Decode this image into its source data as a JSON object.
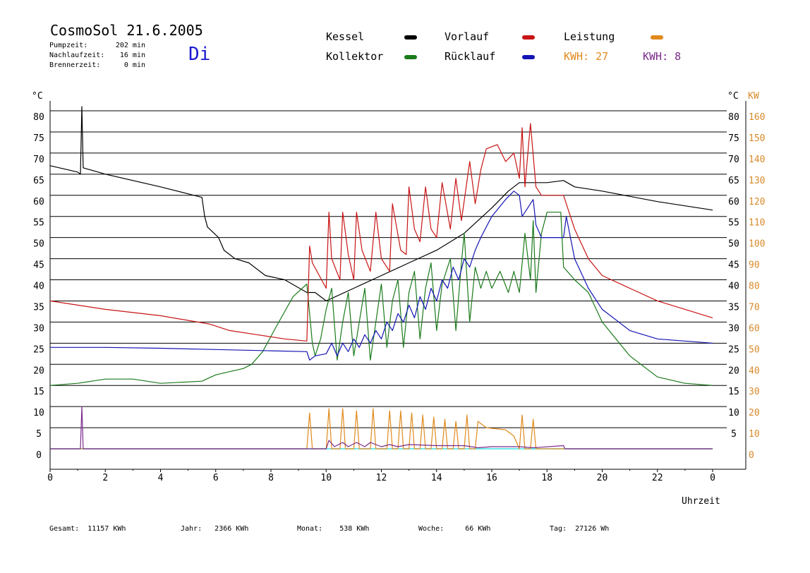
{
  "header": {
    "title": "CosmoSol 21.6.2005",
    "day": "Di",
    "pump_label": "Pumpzeit:",
    "pump_value": "202 min",
    "nachlauf_label": "Nachlaufzeit:",
    "nachlauf_value": "16 min",
    "brenner_label": "Brennerzeit:",
    "brenner_value": "0 min"
  },
  "legend": {
    "kessel": "Kessel",
    "kollektor": "Kollektor",
    "vorlauf": "Vorlauf",
    "ruecklauf": "Rücklauf",
    "leistung": "Leistung",
    "kwh1": "KWH: 27",
    "kwh2": "KWH: 8"
  },
  "colors": {
    "kessel": "#000000",
    "kollektor": "#1a7a1a",
    "vorlauf": "#c81414",
    "ruecklauf": "#1414b4",
    "leistung": "#e08a1e",
    "kwh2": "#7a2a8a",
    "zero_line": "#3ee0e0",
    "right_axis": "#d98a2a",
    "day": "#1a1ad0"
  },
  "footer": {
    "gesamt_label": "Gesamt:",
    "gesamt_value": "11157 KWh",
    "jahr_label": "Jahr:",
    "jahr_value": "2366 KWh",
    "monat_label": "Monat:",
    "monat_value": "538 KWh",
    "woche_label": "Woche:",
    "woche_value": "66 KWh",
    "tag_label": "Tag:",
    "tag_value": "27126 Wh"
  },
  "chart_data": {
    "type": "line",
    "xlabel": "Uhrzeit",
    "ylabel": "°C",
    "y2label": "KW",
    "xlim": [
      0,
      24
    ],
    "ylim": [
      0,
      80
    ],
    "y2lim": [
      0,
      160
    ],
    "x_ticks": [
      "0",
      "2",
      "4",
      "6",
      "8",
      "10",
      "12",
      "14",
      "16",
      "18",
      "20",
      "22",
      "0"
    ],
    "y_ticks": [
      0,
      5,
      10,
      15,
      20,
      25,
      30,
      35,
      40,
      45,
      50,
      55,
      60,
      65,
      70,
      75,
      80
    ],
    "y2_ticks_left": [
      "0",
      "10",
      "20",
      "30",
      "40",
      "50",
      "60",
      "70",
      "80",
      "90",
      "100",
      "110",
      "120",
      "130",
      "140",
      "150",
      "160"
    ],
    "y2_ticks_right_inner": [
      "",
      "5",
      "10",
      "15",
      "20",
      "25",
      "30",
      "35",
      "40",
      "45",
      "50",
      "55",
      "60",
      "65",
      "70",
      "75",
      "80"
    ],
    "grid": "horizontal",
    "series": [
      {
        "name": "Kessel",
        "color": "#000000",
        "points": [
          [
            0,
            67
          ],
          [
            1,
            65.5
          ],
          [
            1.1,
            65
          ],
          [
            1.15,
            81
          ],
          [
            1.2,
            66.5
          ],
          [
            2,
            65
          ],
          [
            4,
            62
          ],
          [
            5.5,
            59.5
          ],
          [
            5.6,
            55
          ],
          [
            5.7,
            52.5
          ],
          [
            6.1,
            50
          ],
          [
            6.3,
            47
          ],
          [
            6.7,
            45
          ],
          [
            7.2,
            44
          ],
          [
            7.8,
            41
          ],
          [
            8.5,
            40
          ],
          [
            9.3,
            37
          ],
          [
            9.6,
            37
          ],
          [
            10,
            35
          ],
          [
            11,
            38
          ],
          [
            12,
            41
          ],
          [
            13,
            44
          ],
          [
            14,
            47
          ],
          [
            15,
            51
          ],
          [
            16,
            57
          ],
          [
            16.6,
            61
          ],
          [
            17,
            63
          ],
          [
            18,
            63
          ],
          [
            18.6,
            63.5
          ],
          [
            19,
            62
          ],
          [
            20,
            61
          ],
          [
            22,
            58.5
          ],
          [
            24,
            56.5
          ]
        ]
      },
      {
        "name": "Kollektor",
        "color": "#1a7a1a",
        "points": [
          [
            0,
            15
          ],
          [
            1,
            15.5
          ],
          [
            1.5,
            16
          ],
          [
            2,
            16.5
          ],
          [
            3,
            16.5
          ],
          [
            4,
            15.5
          ],
          [
            5.5,
            16
          ],
          [
            6,
            17.5
          ],
          [
            7,
            19
          ],
          [
            7.3,
            20
          ],
          [
            7.7,
            23
          ],
          [
            8.2,
            29
          ],
          [
            8.8,
            36
          ],
          [
            9.3,
            39
          ],
          [
            9.5,
            25
          ],
          [
            9.6,
            22
          ],
          [
            9.8,
            26
          ],
          [
            10,
            33
          ],
          [
            10.2,
            38
          ],
          [
            10.4,
            21
          ],
          [
            10.6,
            30
          ],
          [
            10.8,
            37
          ],
          [
            11,
            22
          ],
          [
            11.2,
            30
          ],
          [
            11.4,
            38
          ],
          [
            11.6,
            21
          ],
          [
            11.8,
            30
          ],
          [
            12,
            39
          ],
          [
            12.2,
            24
          ],
          [
            12.4,
            35
          ],
          [
            12.6,
            40
          ],
          [
            12.8,
            24
          ],
          [
            13,
            37
          ],
          [
            13.2,
            42
          ],
          [
            13.4,
            26
          ],
          [
            13.6,
            38
          ],
          [
            13.8,
            44
          ],
          [
            14,
            28
          ],
          [
            14.2,
            39
          ],
          [
            14.5,
            45
          ],
          [
            14.7,
            28
          ],
          [
            14.9,
            44
          ],
          [
            15,
            51
          ],
          [
            15.2,
            30
          ],
          [
            15.4,
            43
          ],
          [
            15.6,
            38
          ],
          [
            15.8,
            42
          ],
          [
            16,
            38
          ],
          [
            16.3,
            42
          ],
          [
            16.6,
            37
          ],
          [
            16.8,
            42
          ],
          [
            17,
            37
          ],
          [
            17.2,
            51
          ],
          [
            17.4,
            40
          ],
          [
            17.5,
            54
          ],
          [
            17.6,
            37
          ],
          [
            17.8,
            51
          ],
          [
            18,
            56
          ],
          [
            18.5,
            56
          ],
          [
            18.6,
            43
          ],
          [
            19,
            40
          ],
          [
            19.5,
            37
          ],
          [
            20,
            30
          ],
          [
            21,
            22
          ],
          [
            22,
            17
          ],
          [
            23,
            15.5
          ],
          [
            24,
            15
          ]
        ]
      },
      {
        "name": "Vorlauf",
        "color": "#c81414",
        "points": [
          [
            0,
            35
          ],
          [
            2,
            33
          ],
          [
            4,
            31.5
          ],
          [
            5.8,
            29.5
          ],
          [
            6.5,
            28
          ],
          [
            7.5,
            27
          ],
          [
            8.5,
            26
          ],
          [
            9.3,
            25.5
          ],
          [
            9.4,
            48
          ],
          [
            9.5,
            44
          ],
          [
            10,
            38
          ],
          [
            10.1,
            56
          ],
          [
            10.2,
            45
          ],
          [
            10.5,
            40
          ],
          [
            10.6,
            56
          ],
          [
            10.8,
            46
          ],
          [
            11,
            40
          ],
          [
            11.1,
            56
          ],
          [
            11.3,
            47
          ],
          [
            11.6,
            42
          ],
          [
            11.8,
            56
          ],
          [
            12,
            45
          ],
          [
            12.3,
            42
          ],
          [
            12.4,
            58
          ],
          [
            12.7,
            47
          ],
          [
            12.9,
            46
          ],
          [
            13,
            62
          ],
          [
            13.2,
            52
          ],
          [
            13.4,
            49
          ],
          [
            13.6,
            62
          ],
          [
            13.8,
            52
          ],
          [
            14,
            50
          ],
          [
            14.2,
            63
          ],
          [
            14.5,
            52
          ],
          [
            14.7,
            64
          ],
          [
            14.9,
            54
          ],
          [
            15.2,
            68
          ],
          [
            15.4,
            58
          ],
          [
            15.6,
            66
          ],
          [
            15.8,
            71
          ],
          [
            16.2,
            72
          ],
          [
            16.5,
            68
          ],
          [
            16.8,
            70
          ],
          [
            17,
            64
          ],
          [
            17.1,
            76
          ],
          [
            17.2,
            62
          ],
          [
            17.4,
            77
          ],
          [
            17.6,
            62
          ],
          [
            17.8,
            60
          ],
          [
            18.6,
            60
          ],
          [
            18.8,
            56
          ],
          [
            19,
            52
          ],
          [
            19.5,
            45
          ],
          [
            20,
            41
          ],
          [
            21,
            38
          ],
          [
            22,
            35
          ],
          [
            24,
            31
          ]
        ]
      },
      {
        "name": "Rücklauf",
        "color": "#1414b4",
        "points": [
          [
            0,
            24
          ],
          [
            2,
            24
          ],
          [
            4,
            23.8
          ],
          [
            6,
            23.5
          ],
          [
            8,
            23.2
          ],
          [
            9.3,
            23
          ],
          [
            9.4,
            21
          ],
          [
            9.6,
            22
          ],
          [
            10,
            22.5
          ],
          [
            10.2,
            25
          ],
          [
            10.4,
            22
          ],
          [
            10.6,
            25
          ],
          [
            10.8,
            23
          ],
          [
            11,
            26
          ],
          [
            11.2,
            24
          ],
          [
            11.4,
            27
          ],
          [
            11.6,
            25
          ],
          [
            11.8,
            28
          ],
          [
            12,
            26
          ],
          [
            12.2,
            30
          ],
          [
            12.4,
            28
          ],
          [
            12.6,
            32
          ],
          [
            12.8,
            30
          ],
          [
            13,
            34
          ],
          [
            13.2,
            31
          ],
          [
            13.4,
            36
          ],
          [
            13.6,
            33
          ],
          [
            13.8,
            38
          ],
          [
            14,
            35
          ],
          [
            14.2,
            40
          ],
          [
            14.4,
            38
          ],
          [
            14.6,
            43
          ],
          [
            14.8,
            40
          ],
          [
            15,
            45
          ],
          [
            15.2,
            43
          ],
          [
            15.4,
            47
          ],
          [
            15.6,
            50
          ],
          [
            16,
            55
          ],
          [
            16.5,
            59
          ],
          [
            16.8,
            61
          ],
          [
            17,
            60
          ],
          [
            17.1,
            55
          ],
          [
            17.3,
            57
          ],
          [
            17.5,
            59
          ],
          [
            17.6,
            53
          ],
          [
            17.8,
            50
          ],
          [
            18.6,
            50
          ],
          [
            18.7,
            55
          ],
          [
            19,
            45
          ],
          [
            19.5,
            38
          ],
          [
            20,
            33
          ],
          [
            21,
            28
          ],
          [
            22,
            26
          ],
          [
            24,
            25
          ]
        ]
      },
      {
        "name": "Leistung",
        "color": "#e08a1e",
        "axis": "right",
        "points": [
          [
            0,
            0
          ],
          [
            9.3,
            0
          ],
          [
            9.4,
            17
          ],
          [
            9.5,
            0
          ],
          [
            10,
            0
          ],
          [
            10.1,
            19
          ],
          [
            10.2,
            0
          ],
          [
            10.5,
            0
          ],
          [
            10.6,
            19
          ],
          [
            10.7,
            0
          ],
          [
            11,
            0
          ],
          [
            11.1,
            18
          ],
          [
            11.2,
            0
          ],
          [
            11.6,
            0
          ],
          [
            11.7,
            19
          ],
          [
            11.8,
            0
          ],
          [
            12.2,
            0
          ],
          [
            12.3,
            18
          ],
          [
            12.4,
            0
          ],
          [
            12.6,
            0
          ],
          [
            12.7,
            18
          ],
          [
            12.8,
            0
          ],
          [
            13,
            0
          ],
          [
            13.1,
            17
          ],
          [
            13.2,
            0
          ],
          [
            13.4,
            0
          ],
          [
            13.5,
            16
          ],
          [
            13.6,
            0
          ],
          [
            13.8,
            0
          ],
          [
            13.9,
            15
          ],
          [
            14,
            0
          ],
          [
            14.2,
            0
          ],
          [
            14.3,
            14
          ],
          [
            14.4,
            0
          ],
          [
            14.6,
            0
          ],
          [
            14.7,
            13
          ],
          [
            14.8,
            0
          ],
          [
            15,
            0
          ],
          [
            15.1,
            16
          ],
          [
            15.2,
            0
          ],
          [
            15.4,
            0
          ],
          [
            15.5,
            13
          ],
          [
            15.8,
            10
          ],
          [
            16.5,
            9
          ],
          [
            16.8,
            6
          ],
          [
            17,
            0
          ],
          [
            17.1,
            16
          ],
          [
            17.2,
            0
          ],
          [
            17.4,
            0
          ],
          [
            17.5,
            14
          ],
          [
            17.6,
            0
          ],
          [
            24,
            0
          ]
        ]
      },
      {
        "name": "KWH 8",
        "color": "#7a2a8a",
        "axis": "right",
        "points": [
          [
            0,
            0
          ],
          [
            1.1,
            0
          ],
          [
            1.15,
            20
          ],
          [
            1.2,
            0
          ],
          [
            10,
            0
          ],
          [
            10.1,
            4
          ],
          [
            10.3,
            1
          ],
          [
            10.6,
            3
          ],
          [
            10.8,
            1
          ],
          [
            11.1,
            3
          ],
          [
            11.4,
            1
          ],
          [
            11.6,
            3
          ],
          [
            12,
            1
          ],
          [
            12.3,
            2
          ],
          [
            12.6,
            1
          ],
          [
            13,
            2
          ],
          [
            14,
            1.5
          ],
          [
            15,
            1.5
          ],
          [
            15.5,
            0.5
          ],
          [
            16,
            1
          ],
          [
            17,
            1
          ],
          [
            17.5,
            0.5
          ],
          [
            18.6,
            1.5
          ],
          [
            18.65,
            0
          ],
          [
            24,
            0
          ]
        ]
      }
    ]
  }
}
